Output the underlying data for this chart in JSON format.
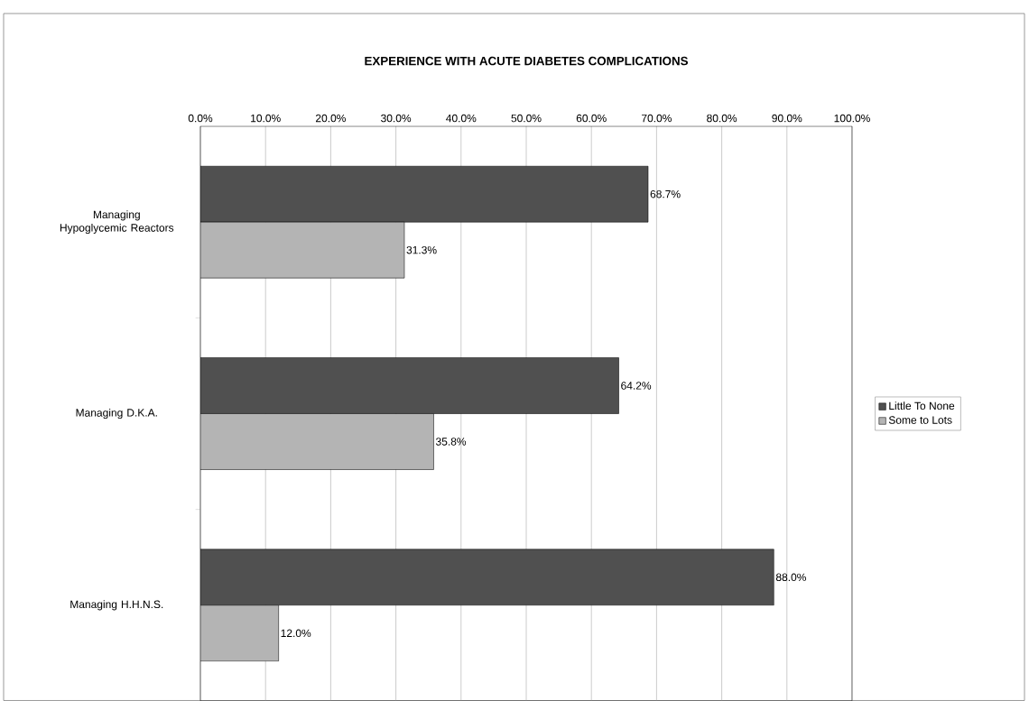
{
  "chart_data": {
    "type": "bar",
    "orientation": "horizontal",
    "title": "EXPERIENCE WITH ACUTE DIABETES COMPLICATIONS",
    "categories": [
      "Managing Hypoglycemic Reactors",
      "Managing D.K.A.",
      "Managing H.H.N.S."
    ],
    "series": [
      {
        "name": "Little To None",
        "color": "#505050",
        "values": [
          68.7,
          64.2,
          88.0
        ],
        "value_labels": [
          "68.7%",
          "64.2%",
          "88.0%"
        ]
      },
      {
        "name": "Some to Lots",
        "color": "#b4b4b4",
        "values": [
          31.3,
          35.8,
          12.0
        ],
        "value_labels": [
          "31.3%",
          "35.8%",
          "12.0%"
        ]
      }
    ],
    "xlim": [
      0,
      100
    ],
    "xticks": [
      {
        "value": 0,
        "label": "0.0%"
      },
      {
        "value": 10,
        "label": "10.0%"
      },
      {
        "value": 20,
        "label": "20.0%"
      },
      {
        "value": 30,
        "label": "30.0%"
      },
      {
        "value": 40,
        "label": "40.0%"
      },
      {
        "value": 50,
        "label": "50.0%"
      },
      {
        "value": 60,
        "label": "60.0%"
      },
      {
        "value": 70,
        "label": "70.0%"
      },
      {
        "value": 80,
        "label": "80.0%"
      },
      {
        "value": 90,
        "label": "90.0%"
      },
      {
        "value": 100,
        "label": "100.0%"
      }
    ],
    "grid": "x",
    "legend": "right"
  }
}
